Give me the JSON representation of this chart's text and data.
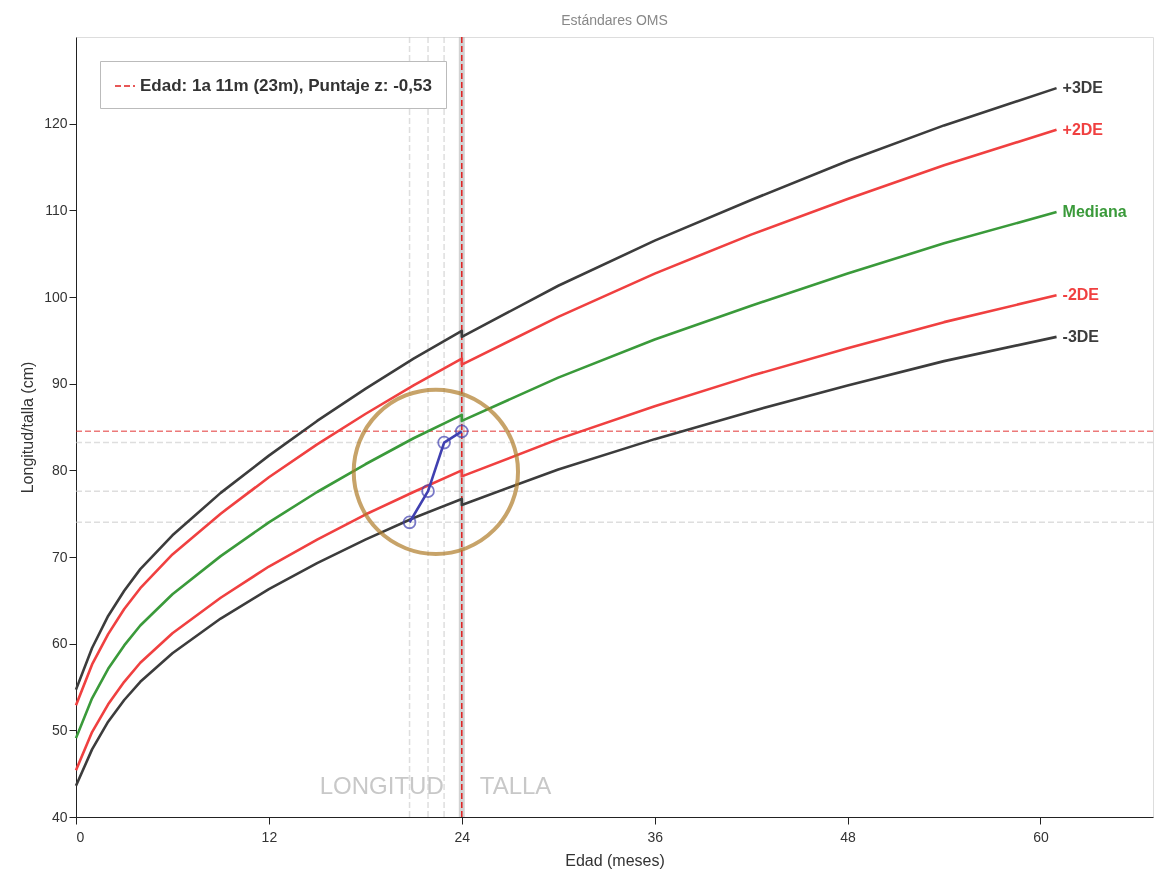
{
  "chart_data": {
    "type": "line",
    "title": "Estándares OMS",
    "xlabel": "Edad (meses)",
    "ylabel": "Longitud/talla (cm)",
    "xlim": [
      0,
      67
    ],
    "ylim": [
      40,
      130
    ],
    "xticks": [
      0,
      12,
      24,
      36,
      48,
      60
    ],
    "yticks": [
      40,
      50,
      60,
      70,
      80,
      90,
      100,
      110,
      120
    ],
    "x": [
      0,
      1,
      2,
      3,
      4,
      6,
      9,
      12,
      15,
      18,
      21,
      24,
      24,
      30,
      36,
      42,
      48,
      54,
      61
    ],
    "series": [
      {
        "name": "+3DE",
        "color": "#3c3c3c",
        "marker": "none",
        "values": [
          54.7,
          59.5,
          63.2,
          66.1,
          68.6,
          72.5,
          77.4,
          81.7,
          85.7,
          89.4,
          92.9,
          96.1,
          95.4,
          101.3,
          106.5,
          111.2,
          115.7,
          119.8,
          124.1
        ]
      },
      {
        "name": "+2DE",
        "color": "#f04040",
        "marker": "none",
        "values": [
          52.9,
          57.6,
          61.1,
          64.0,
          66.4,
          70.3,
          75.0,
          79.2,
          83.0,
          86.5,
          89.8,
          92.9,
          92.2,
          97.7,
          102.7,
          107.2,
          111.3,
          115.2,
          119.3
        ]
      },
      {
        "name": "Mediana",
        "color": "#3a9a3a",
        "marker": "none",
        "values": [
          49.1,
          53.7,
          57.1,
          59.8,
          62.1,
          65.7,
          70.1,
          74.0,
          77.5,
          80.7,
          83.7,
          86.4,
          85.7,
          90.7,
          95.1,
          99.0,
          102.7,
          106.2,
          109.8
        ]
      },
      {
        "name": "-2DE",
        "color": "#f04040",
        "marker": "none",
        "values": [
          45.4,
          49.8,
          53.0,
          55.6,
          57.8,
          61.2,
          65.3,
          68.9,
          72.0,
          74.9,
          77.5,
          80.0,
          79.3,
          83.6,
          87.4,
          90.9,
          94.1,
          97.1,
          100.2
        ]
      },
      {
        "name": "-3DE",
        "color": "#3c3c3c",
        "marker": "none",
        "values": [
          43.6,
          47.8,
          51.0,
          53.5,
          55.6,
          58.9,
          62.9,
          66.3,
          69.3,
          72.0,
          74.5,
          76.7,
          76.0,
          80.1,
          83.6,
          86.8,
          89.8,
          92.6,
          95.4
        ]
      },
      {
        "color": "#4040b0",
        "marker": "circle",
        "x": [
          20.75,
          21.9,
          22.9,
          24
        ],
        "values": [
          74.0,
          77.6,
          83.2,
          84.5
        ]
      }
    ],
    "ref_lines": [
      {
        "axis": "x",
        "value": 20.75,
        "color": "#c8c8c8",
        "line_style": "dashed"
      },
      {
        "axis": "x",
        "value": 21.9,
        "color": "#c8c8c8",
        "line_style": "dashed"
      },
      {
        "axis": "x",
        "value": 22.9,
        "color": "#c8c8c8",
        "line_style": "dashed"
      },
      {
        "axis": "y",
        "value": 74.0,
        "color": "#c8c8c8",
        "line_style": "dashed"
      },
      {
        "axis": "y",
        "value": 77.6,
        "color": "#c8c8c8",
        "line_style": "dashed"
      },
      {
        "axis": "y",
        "value": 83.2,
        "color": "#c8c8c8",
        "line_style": "dashed"
      },
      {
        "axis": "x",
        "value": 24,
        "color": "#b4b4b4",
        "line_style": "solid"
      },
      {
        "axis": "y",
        "value": 84.5,
        "color": "#e02020",
        "line_style": "dashed"
      },
      {
        "axis": "x",
        "value": 24,
        "color": "#e02020",
        "line_style": "dashed"
      }
    ],
    "annotations": [
      "LONGITUD",
      "TALLA",
      "Edad: 1a 11m (23m), Puntaje z: -0,53"
    ],
    "grid": false,
    "line_style": "solid"
  }
}
